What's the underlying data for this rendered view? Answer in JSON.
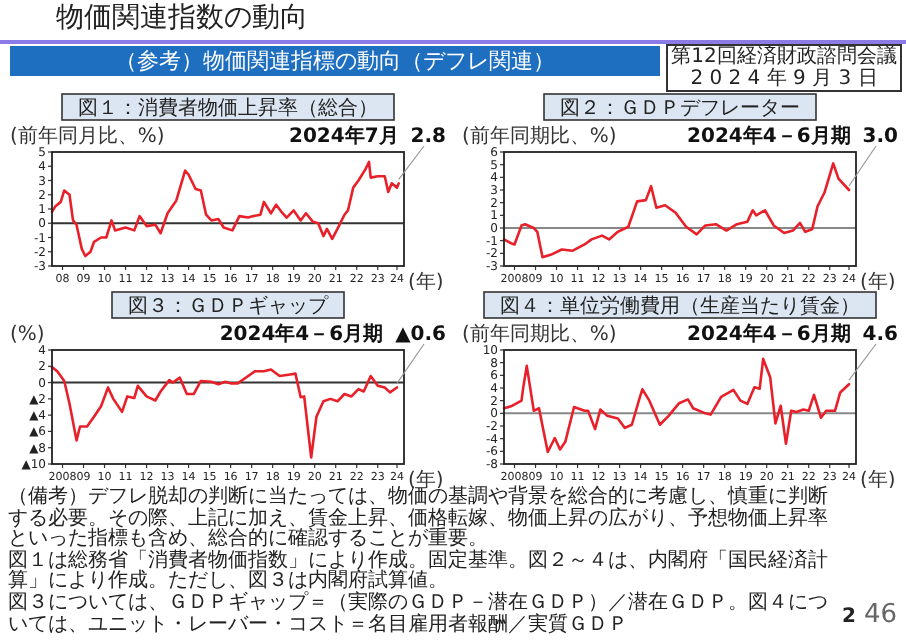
{
  "chart_data": [
    {
      "type": "other",
      "title": "物価関連指数の動向",
      "subtitle": "（参考）物価関連指標の動向（デフレ関連）",
      "annotations": [
        "第12回経済財政諮問会議",
        "2 0 2 4 年 9 月 3 日",
        "（備考）デフレ脱却の判断に当たっては、物価の基調や背景を総合的に考慮し、慎重に判断する必要。その際、上記に加え、賃金上昇、価格転嫁、物価上昇の広がり、予想物価上昇率といった指標も含め、総合的に確認することが重要。",
        "図１は総務省「消費者物価指数」により作成。固定基準。図２～４は、内閣府「国民経済計算」により作成。ただし、図３は内閣府試算値。",
        "図３については、ＧＤＰギャップ＝（実際のＧＤＰ－潜在ＧＤＰ）／潜在ＧＤＰ。図４については、ユニット・レーバー・コスト＝名目雇用者報酬／実質ＧＤＰ",
        "2",
        "46"
      ]
    },
    {
      "type": "line",
      "title": "図１：消費者物価上昇率（総合）",
      "ylabel": "(前年同月比、%)",
      "xlabel": "(年)",
      "color": "#e8202a",
      "x": [
        "2008-01",
        "2008-03",
        "2008-06",
        "2008-08",
        "2008-11",
        "2009-01",
        "2009-03",
        "2009-06",
        "2009-08",
        "2009-11",
        "2010-01",
        "2010-05",
        "2010-08",
        "2010-11",
        "2011-01",
        "2011-07",
        "2011-12",
        "2012-03",
        "2012-07",
        "2012-12",
        "2013-03",
        "2013-07",
        "2013-12",
        "2014-05",
        "2014-07",
        "2014-11",
        "2015-02",
        "2015-05",
        "2015-08",
        "2015-12",
        "2016-03",
        "2016-08",
        "2016-12",
        "2017-05",
        "2017-08",
        "2017-12",
        "2018-02",
        "2018-06",
        "2018-09",
        "2018-12",
        "2019-03",
        "2019-07",
        "2019-11",
        "2020-02",
        "2020-06",
        "2020-09",
        "2020-12",
        "2021-02",
        "2021-05",
        "2021-08",
        "2021-12",
        "2022-02",
        "2022-05",
        "2022-08",
        "2022-12",
        "2023-02",
        "2023-03",
        "2023-07",
        "2023-11",
        "2024-01",
        "2024-03",
        "2024-06",
        "2024-07"
      ],
      "values": [
        0.8,
        1.2,
        1.5,
        2.3,
        2.0,
        0.2,
        -0.1,
        -1.8,
        -2.3,
        -2.0,
        -1.3,
        -1.0,
        -1.0,
        0.2,
        -0.5,
        -0.3,
        -0.5,
        0.5,
        -0.2,
        -0.1,
        -0.7,
        0.7,
        1.6,
        3.7,
        3.4,
        2.4,
        2.3,
        0.6,
        0.2,
        0.3,
        -0.3,
        -0.5,
        0.5,
        0.4,
        0.5,
        0.6,
        1.5,
        0.7,
        1.3,
        0.8,
        0.4,
        0.9,
        0.2,
        0.7,
        0.1,
        0.0,
        -0.9,
        -0.4,
        -1.1,
        -0.4,
        0.6,
        0.9,
        2.5,
        3.0,
        3.8,
        4.3,
        3.2,
        3.3,
        3.3,
        2.2,
        2.8,
        2.5,
        2.8
      ],
      "xlim": [
        "2008-01",
        "2024-10"
      ],
      "xticks": [
        {
          "value": "2008-07",
          "label": "08"
        },
        {
          "value": "2009-07",
          "label": "09"
        },
        {
          "value": "2010-07",
          "label": "10"
        },
        {
          "value": "2011-07",
          "label": "11"
        },
        {
          "value": "2012-07",
          "label": "12"
        },
        {
          "value": "2013-07",
          "label": "13"
        },
        {
          "value": "2014-07",
          "label": "14"
        },
        {
          "value": "2015-07",
          "label": "15"
        },
        {
          "value": "2016-07",
          "label": "16"
        },
        {
          "value": "2017-07",
          "label": "17"
        },
        {
          "value": "2018-07",
          "label": "18"
        },
        {
          "value": "2019-07",
          "label": "19"
        },
        {
          "value": "2020-07",
          "label": "20"
        },
        {
          "value": "2021-07",
          "label": "21"
        },
        {
          "value": "2022-07",
          "label": "22"
        },
        {
          "value": "2023-07",
          "label": "23"
        },
        {
          "value": "2024-06",
          "label": "24"
        }
      ],
      "ylim": [
        -3,
        5
      ],
      "yticks": [
        -3,
        -2,
        -1,
        0,
        1,
        2,
        3,
        4,
        5
      ],
      "ref_lines": [
        {
          "axis": "y",
          "value": 0,
          "color": "#333333"
        }
      ],
      "annotations": [
        {
          "text": "2024年7月\n2.8",
          "x": "2024-07",
          "y": 2.8
        }
      ]
    },
    {
      "type": "line",
      "title": "図２：ＧＤＰデフレーター",
      "ylabel": "(前年同期比、%)",
      "xlabel": "(年)",
      "color": "#e8202a",
      "x": [
        "2008-01",
        "2008-05",
        "2008-07",
        "2008-11",
        "2009-01",
        "2009-06",
        "2009-08",
        "2009-11",
        "2010-04",
        "2010-10",
        "2011-04",
        "2011-11",
        "2012-03",
        "2012-09",
        "2013-01",
        "2013-06",
        "2013-12",
        "2014-05",
        "2014-10",
        "2015-01",
        "2015-04",
        "2015-09",
        "2016-03",
        "2016-09",
        "2017-03",
        "2017-08",
        "2018-02",
        "2018-08",
        "2019-02",
        "2019-08",
        "2019-11",
        "2020-01",
        "2020-06",
        "2020-11",
        "2021-05",
        "2021-10",
        "2022-02",
        "2022-05",
        "2022-09",
        "2022-12",
        "2023-04",
        "2023-09",
        "2023-12",
        "2024-06"
      ],
      "values": [
        -0.9,
        -1.2,
        -1.3,
        0.2,
        0.3,
        0.0,
        -0.3,
        -2.3,
        -2.1,
        -1.7,
        -1.8,
        -1.3,
        -0.9,
        -0.6,
        -0.9,
        -0.3,
        0.1,
        2.1,
        2.2,
        3.3,
        1.6,
        1.8,
        1.2,
        0.1,
        -0.5,
        0.2,
        0.3,
        -0.2,
        0.3,
        0.5,
        1.4,
        1.0,
        1.4,
        0.2,
        -0.4,
        -0.2,
        0.4,
        -0.3,
        -0.1,
        1.7,
        2.8,
        5.1,
        3.9,
        3.0
      ],
      "xlim": [
        "2008-01",
        "2024-10"
      ],
      "xticks": [
        {
          "value": "2008-07",
          "label": "2008"
        },
        {
          "value": "2009-07",
          "label": "09"
        },
        {
          "value": "2010-07",
          "label": "10"
        },
        {
          "value": "2011-07",
          "label": "11"
        },
        {
          "value": "2012-07",
          "label": "12"
        },
        {
          "value": "2013-07",
          "label": "13"
        },
        {
          "value": "2014-07",
          "label": "14"
        },
        {
          "value": "2015-07",
          "label": "15"
        },
        {
          "value": "2016-07",
          "label": "16"
        },
        {
          "value": "2017-07",
          "label": "17"
        },
        {
          "value": "2018-07",
          "label": "18"
        },
        {
          "value": "2019-07",
          "label": "19"
        },
        {
          "value": "2020-07",
          "label": "20"
        },
        {
          "value": "2021-07",
          "label": "21"
        },
        {
          "value": "2022-07",
          "label": "22"
        },
        {
          "value": "2023-07",
          "label": "23"
        },
        {
          "value": "2024-06",
          "label": "24"
        }
      ],
      "ylim": [
        -3,
        6
      ],
      "yticks": [
        -3,
        -2,
        -1,
        0,
        1,
        2,
        3,
        4,
        5,
        6
      ],
      "ref_lines": [
        {
          "axis": "y",
          "value": 0,
          "color": "#888888"
        }
      ],
      "annotations": [
        {
          "text": "2024年4－6月期\n3.0",
          "x": "2024-06",
          "y": 3.0
        }
      ]
    },
    {
      "type": "line",
      "title": "図３：ＧＤＰギャップ",
      "ylabel": "(%)",
      "xlabel": "(年)",
      "color": "#e8202a",
      "x": [
        "2008-01",
        "2008-04",
        "2008-08",
        "2008-11",
        "2009-03",
        "2009-05",
        "2009-09",
        "2010-01",
        "2010-05",
        "2010-09",
        "2010-12",
        "2011-05",
        "2011-08",
        "2011-12",
        "2012-02",
        "2012-07",
        "2012-12",
        "2013-03",
        "2013-08",
        "2013-10",
        "2014-02",
        "2014-06",
        "2014-10",
        "2015-02",
        "2015-08",
        "2015-12",
        "2016-04",
        "2016-07",
        "2016-11",
        "2017-03",
        "2017-09",
        "2018-02",
        "2018-06",
        "2018-11",
        "2019-05",
        "2019-08",
        "2019-11",
        "2020-01",
        "2020-05",
        "2020-08",
        "2020-12",
        "2021-04",
        "2021-08",
        "2021-12",
        "2022-04",
        "2022-08",
        "2022-11",
        "2023-03",
        "2023-07",
        "2023-11",
        "2024-02",
        "2024-06"
      ],
      "values": [
        1.9,
        1.4,
        0.2,
        -2.6,
        -7.1,
        -5.4,
        -5.4,
        -4.2,
        -2.9,
        -0.6,
        -2.0,
        -3.6,
        -1.7,
        -1.9,
        -0.4,
        -1.7,
        -2.2,
        -1.1,
        0.3,
        0.0,
        0.6,
        -1.4,
        -1.4,
        0.2,
        0.1,
        -0.2,
        0.1,
        -0.1,
        -0.1,
        0.5,
        1.4,
        1.4,
        1.6,
        0.8,
        1.0,
        1.1,
        -1.8,
        -1.7,
        -9.2,
        -4.2,
        -2.3,
        -2.0,
        -2.3,
        -1.4,
        -1.7,
        -0.8,
        -1.1,
        0.8,
        -0.4,
        -0.6,
        -1.2,
        -0.6
      ],
      "xlim": [
        "2008-01",
        "2024-10"
      ],
      "xticks": [
        {
          "value": "2008-07",
          "label": "2008"
        },
        {
          "value": "2009-07",
          "label": "09"
        },
        {
          "value": "2010-07",
          "label": "10"
        },
        {
          "value": "2011-07",
          "label": "11"
        },
        {
          "value": "2012-07",
          "label": "12"
        },
        {
          "value": "2013-07",
          "label": "13"
        },
        {
          "value": "2014-07",
          "label": "14"
        },
        {
          "value": "2015-07",
          "label": "15"
        },
        {
          "value": "2016-07",
          "label": "16"
        },
        {
          "value": "2017-07",
          "label": "17"
        },
        {
          "value": "2018-07",
          "label": "18"
        },
        {
          "value": "2019-07",
          "label": "19"
        },
        {
          "value": "2020-07",
          "label": "20"
        },
        {
          "value": "2021-07",
          "label": "21"
        },
        {
          "value": "2022-07",
          "label": "22"
        },
        {
          "value": "2023-07",
          "label": "23"
        },
        {
          "value": "2024-06",
          "label": "24"
        }
      ],
      "ylim": [
        -10,
        4
      ],
      "yticks": [
        {
          "value": -10,
          "label": "▲10"
        },
        {
          "value": -8,
          "label": "▲8"
        },
        {
          "value": -6,
          "label": "▲6"
        },
        {
          "value": -4,
          "label": "▲4"
        },
        {
          "value": -2,
          "label": "▲2"
        },
        0,
        2,
        4
      ],
      "ref_lines": [
        {
          "axis": "y",
          "value": 0,
          "color": "#333333"
        }
      ],
      "annotations": [
        {
          "text": "2024年4－6月期\n▲0.6",
          "x": "2024-06",
          "y": -0.6
        }
      ]
    },
    {
      "type": "line",
      "title": "図４：単位労働費用（生産当たり賃金）",
      "ylabel": "(前年同期比、%)",
      "xlabel": "(年)",
      "color": "#e8202a",
      "x": [
        "2008-01",
        "2008-05",
        "2008-11",
        "2008-12",
        "2009-02",
        "2009-06",
        "2009-09",
        "2009-11",
        "2010-02",
        "2010-06",
        "2010-09",
        "2010-12",
        "2011-05",
        "2011-11",
        "2012-01",
        "2012-05",
        "2012-08",
        "2012-12",
        "2013-06",
        "2013-10",
        "2014-02",
        "2014-06",
        "2014-08",
        "2014-12",
        "2015-06",
        "2015-11",
        "2016-05",
        "2016-10",
        "2017-01",
        "2017-08",
        "2017-11",
        "2018-05",
        "2018-12",
        "2019-04",
        "2019-08",
        "2019-12",
        "2020-03",
        "2020-05",
        "2020-09",
        "2020-12",
        "2021-03",
        "2021-06",
        "2021-09",
        "2021-12",
        "2022-04",
        "2022-07",
        "2022-10",
        "2023-02",
        "2023-05",
        "2023-10",
        "2024-01",
        "2024-06"
      ],
      "values": [
        0.8,
        1.1,
        2.0,
        4.1,
        7.5,
        0.4,
        0.8,
        -2.0,
        -6.1,
        -3.9,
        -5.7,
        -4.5,
        1.0,
        0.4,
        0.4,
        -2.5,
        0.6,
        -0.4,
        -0.8,
        -2.3,
        -1.8,
        2.0,
        3.8,
        2.0,
        -1.8,
        -0.4,
        1.6,
        2.2,
        0.8,
        0.0,
        -0.2,
        2.6,
        3.7,
        2.0,
        1.5,
        4.1,
        3.9,
        8.6,
        5.7,
        -1.6,
        1.2,
        -4.8,
        0.4,
        0.2,
        0.6,
        0.4,
        2.9,
        -0.7,
        0.4,
        0.4,
        3.3,
        4.6
      ],
      "xlim": [
        "2008-01",
        "2024-10"
      ],
      "xticks": [
        {
          "value": "2008-07",
          "label": "2008"
        },
        {
          "value": "2009-07",
          "label": "09"
        },
        {
          "value": "2010-07",
          "label": "10"
        },
        {
          "value": "2011-07",
          "label": "11"
        },
        {
          "value": "2012-07",
          "label": "12"
        },
        {
          "value": "2013-07",
          "label": "13"
        },
        {
          "value": "2014-07",
          "label": "14"
        },
        {
          "value": "2015-07",
          "label": "15"
        },
        {
          "value": "2016-07",
          "label": "16"
        },
        {
          "value": "2017-07",
          "label": "17"
        },
        {
          "value": "2018-07",
          "label": "18"
        },
        {
          "value": "2019-07",
          "label": "19"
        },
        {
          "value": "2020-07",
          "label": "20"
        },
        {
          "value": "2021-07",
          "label": "21"
        },
        {
          "value": "2022-07",
          "label": "22"
        },
        {
          "value": "2023-07",
          "label": "23"
        },
        {
          "value": "2024-06",
          "label": "24"
        }
      ],
      "ylim": [
        -8,
        10
      ],
      "yticks": [
        -8,
        -6,
        -4,
        -2,
        0,
        2,
        4,
        6,
        8,
        10
      ],
      "ref_lines": [
        {
          "axis": "y",
          "value": 0,
          "color": "#888888"
        }
      ],
      "annotations": [
        {
          "text": "2024年4－6月期\n4.6",
          "x": "2024-06",
          "y": 4.6
        }
      ]
    }
  ]
}
